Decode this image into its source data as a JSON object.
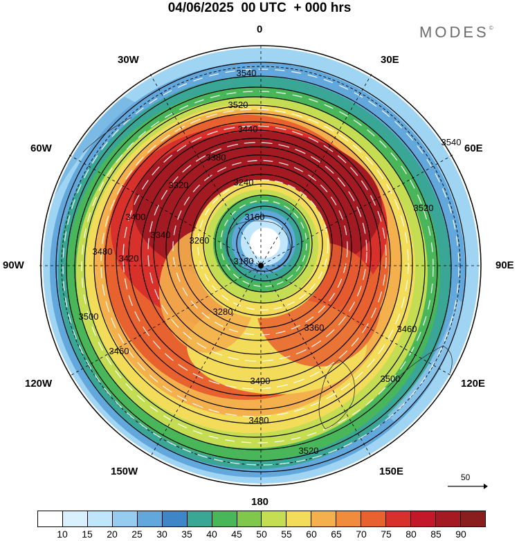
{
  "header": {
    "title": "04/06/2025  00 UTC  + 000 hrs",
    "brand": "MODES",
    "brand_mark": "©"
  },
  "map": {
    "projection": "south-polar-stereographic",
    "longitude_labels": {
      "top": "0",
      "upper_left": "30W",
      "upper_right": "30E",
      "left_high": "60W",
      "right_high": "60E",
      "left": "90W",
      "right": "90E",
      "left_low": "120W",
      "right_low": "120E",
      "lower_left": "150W",
      "lower_right": "150E",
      "bottom": "180"
    },
    "contour_labels": [
      "3540",
      "3520",
      "3440",
      "3380",
      "3240",
      "3160",
      "3180",
      "3260",
      "3320",
      "3340",
      "3400",
      "3420",
      "3480",
      "3500",
      "3460",
      "3280",
      "3360",
      "3540",
      "3520",
      "3400",
      "3480",
      "3460",
      "3500",
      "3520"
    ],
    "vector_reference": {
      "value": "50"
    }
  },
  "colorbar": {
    "colors": [
      "#ffffff",
      "#d9f1fd",
      "#bfe6fb",
      "#95ccef",
      "#62a8dc",
      "#3e86c8",
      "#3aa696",
      "#4ab65a",
      "#7fc84c",
      "#c4dd52",
      "#f3dc5a",
      "#f4b04c",
      "#f08c3c",
      "#e8622f",
      "#d8302a",
      "#c2182a",
      "#a31a22",
      "#8a1e1e"
    ],
    "tick_labels": [
      "10",
      "15",
      "20",
      "25",
      "30",
      "35",
      "40",
      "45",
      "50",
      "55",
      "60",
      "65",
      "70",
      "75",
      "80",
      "85",
      "90"
    ]
  }
}
